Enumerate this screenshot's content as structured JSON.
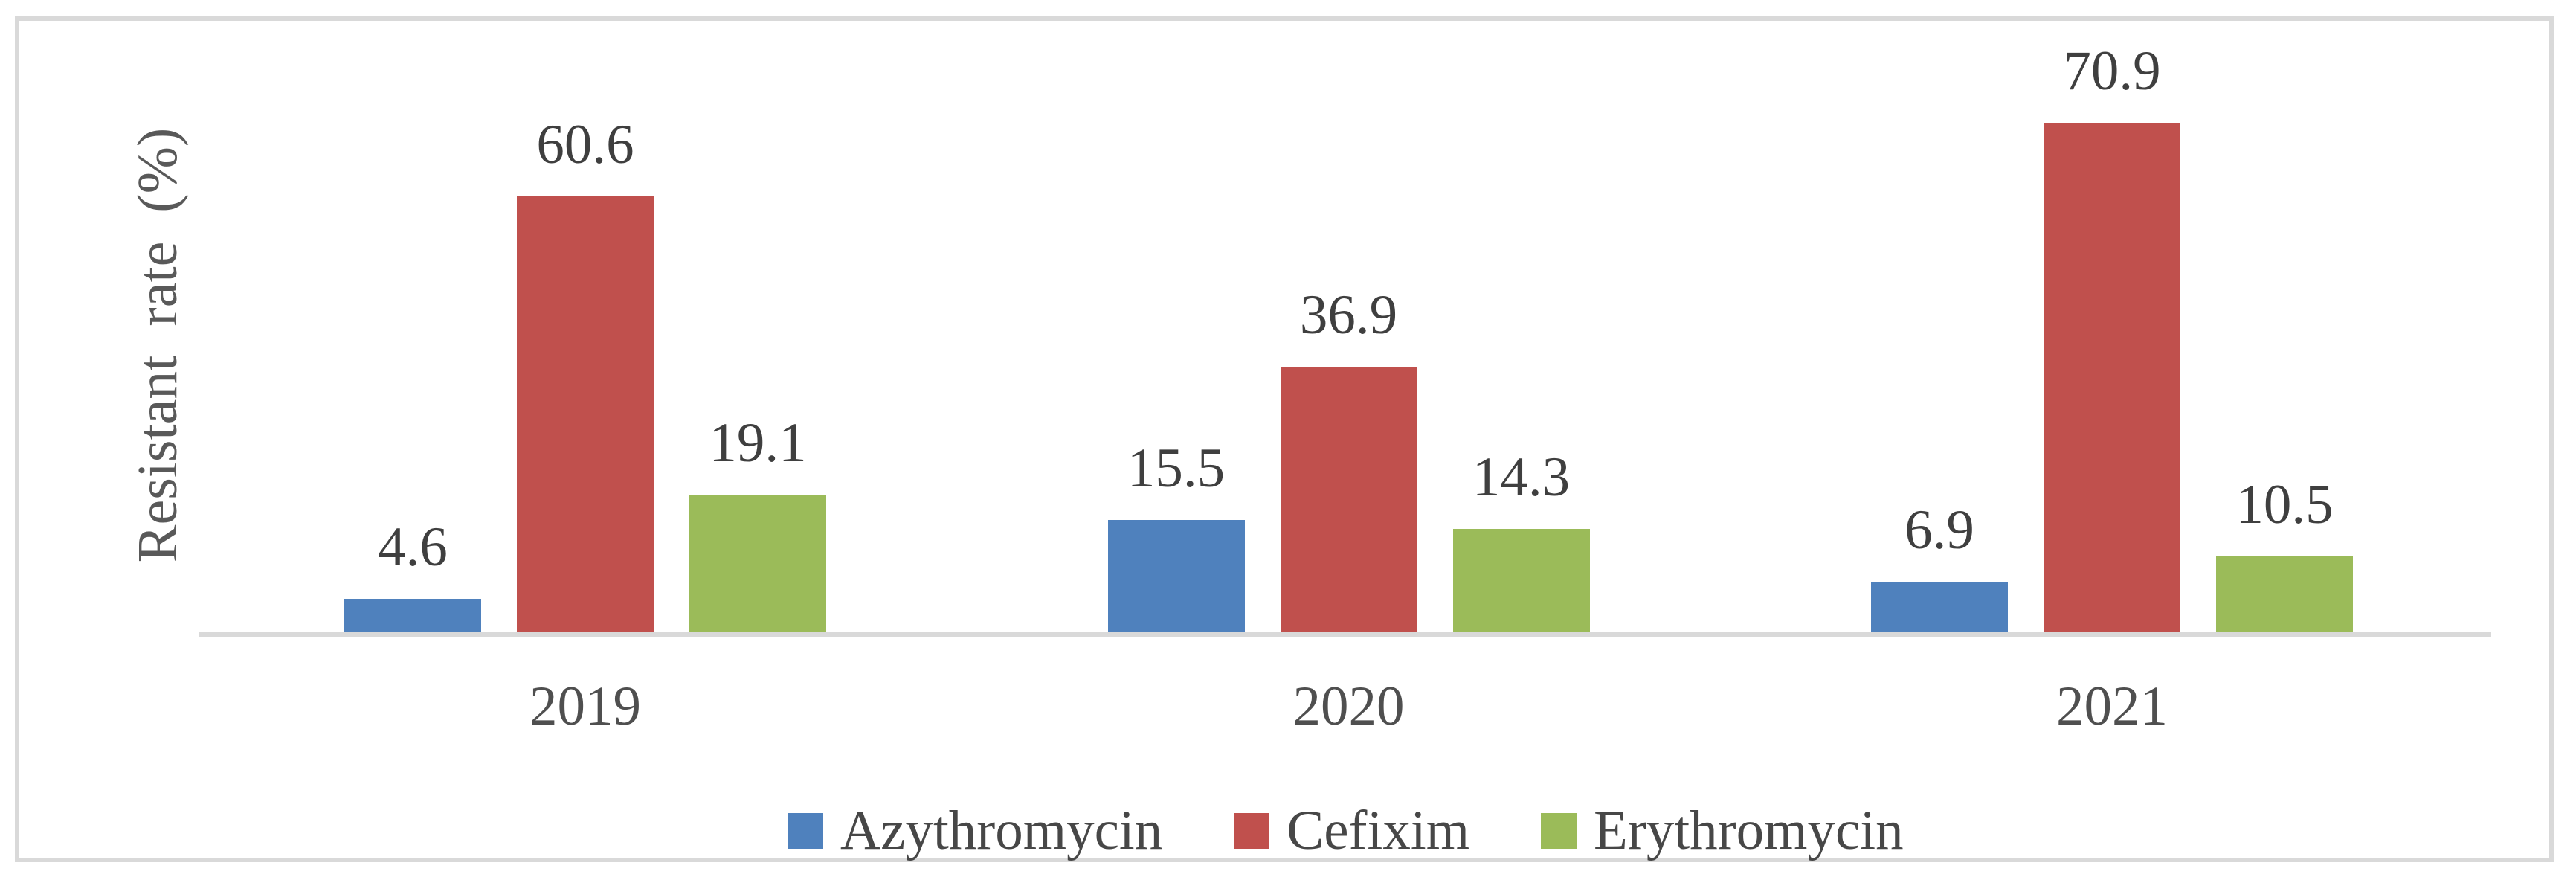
{
  "figure": {
    "background_color": "#FFFFFF",
    "frame_color": "#D9D9D9",
    "axis_line_color": "#D9D9D9"
  },
  "chart_data": {
    "type": "bar",
    "title": "",
    "categories": [
      "2019",
      "2020",
      "2021"
    ],
    "series": [
      {
        "name": "Azythromycin",
        "color": "#4F81BD",
        "values": [
          4.6,
          15.5,
          6.9
        ]
      },
      {
        "name": "Cefixim",
        "color": "#C0504D",
        "values": [
          60.6,
          36.9,
          70.9
        ]
      },
      {
        "name": "Erythromycin",
        "color": "#9BBB59",
        "values": [
          19.1,
          14.3,
          10.5
        ]
      }
    ],
    "data_labels": [
      [
        "4.6",
        "15.5",
        "6.9"
      ],
      [
        "60.6",
        "36.9",
        "70.9"
      ],
      [
        "19.1",
        "14.3",
        "10.5"
      ]
    ],
    "xlabel": "",
    "ylabel": "Resistant rate (%)",
    "ylim": [
      0,
      88
    ],
    "grid": false,
    "y_axis_ticks_visible": false,
    "legend_position": "bottom"
  }
}
